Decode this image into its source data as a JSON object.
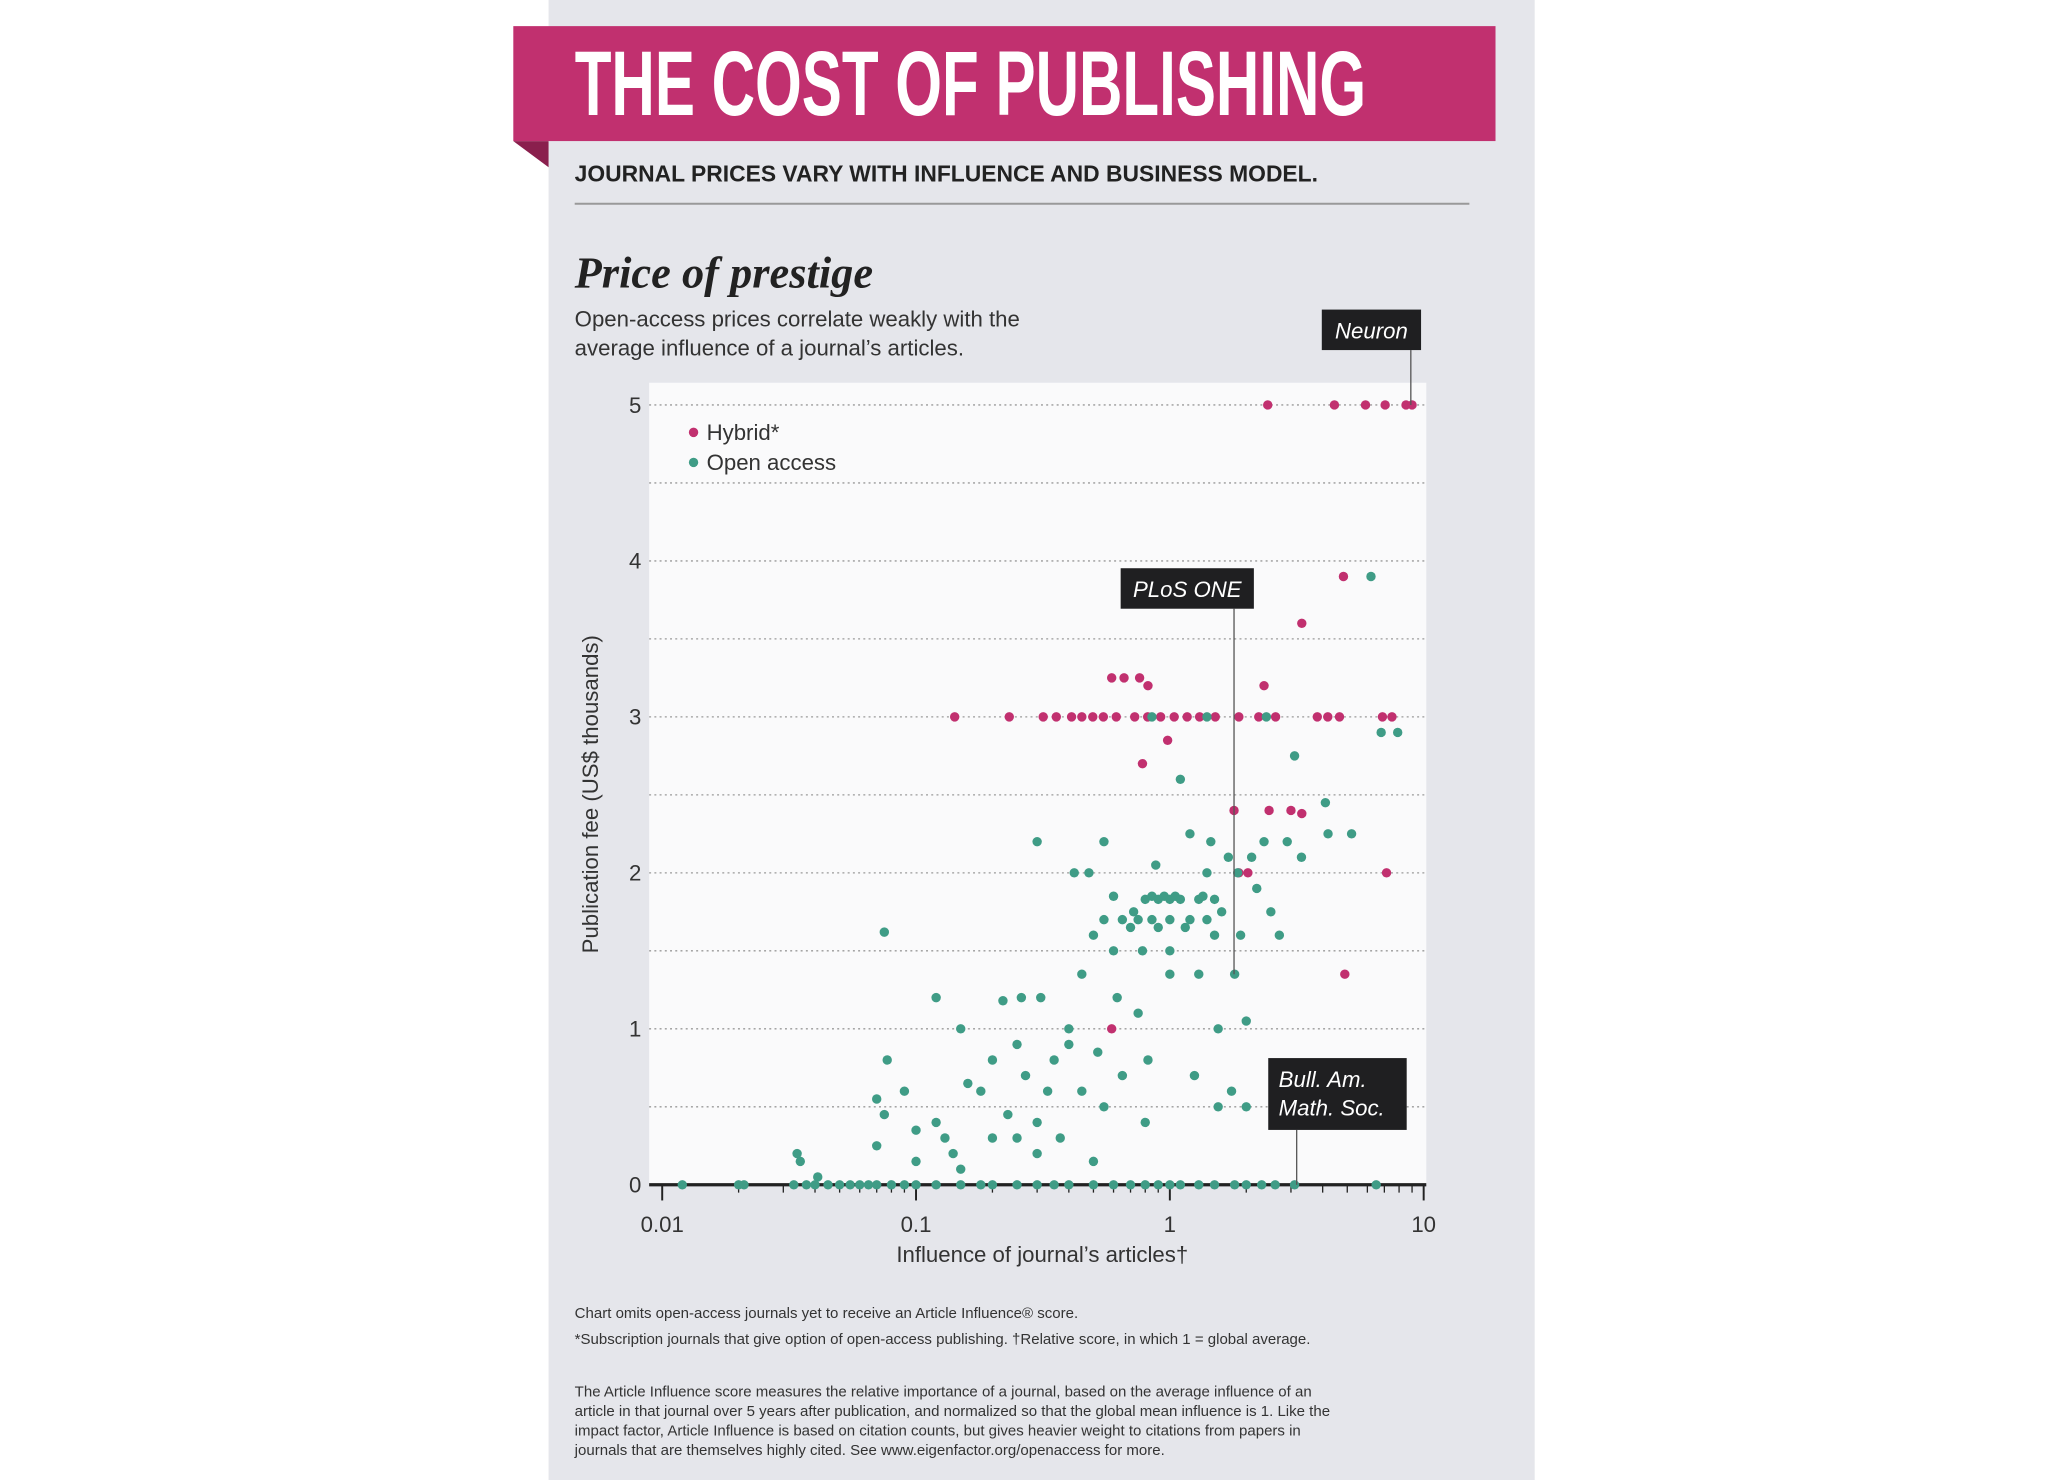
{
  "header": {
    "title": "THE COST OF PUBLISHING",
    "subtitle": "JOURNAL PRICES VARY WITH INFLUENCE AND BUSINESS MODEL."
  },
  "chart_data": {
    "type": "scatter",
    "title": "Price of prestige",
    "subtitle": [
      "Open-access prices correlate weakly with the",
      "average influence of a journal’s articles."
    ],
    "x_label": "Influence of journal’s articles†",
    "y_label": "Publication fee (US$ thousands)",
    "xscale": "log",
    "xlim": [
      0.01,
      10
    ],
    "xticks": [
      0.01,
      0.1,
      1,
      10
    ],
    "xminor": [
      0.02,
      0.03,
      0.04,
      0.05,
      0.06,
      0.07,
      0.08,
      0.09,
      0.2,
      0.3,
      0.4,
      0.5,
      0.6,
      0.7,
      0.8,
      0.9,
      2,
      3,
      4,
      5,
      6,
      7,
      8,
      9
    ],
    "ylim": [
      0,
      5
    ],
    "yticks": [
      0,
      1,
      2,
      3,
      4,
      5
    ],
    "yminor": [
      0.5,
      1.5,
      2.5,
      3.5,
      4.5
    ],
    "grid": true,
    "legend": "top-left",
    "series": [
      {
        "name": "Hybrid*",
        "color": "#c1306f",
        "x": [
          2.43,
          4.45,
          5.9,
          7.05,
          8.52,
          9.0,
          4.83,
          3.31,
          0.59,
          0.66,
          0.76,
          0.82,
          2.35,
          0.142,
          0.233,
          0.317,
          0.357,
          0.41,
          0.45,
          0.497,
          0.547,
          0.615,
          0.727,
          0.818,
          0.92,
          1.04,
          1.17,
          1.31,
          1.51,
          1.87,
          2.24,
          2.61,
          3.81,
          4.19,
          4.66,
          6.88,
          7.5,
          0.98,
          0.78,
          1.79,
          2.46,
          3.0,
          3.31,
          1.87,
          2.03,
          7.14,
          4.89,
          0.59
        ],
        "y": [
          5,
          5,
          5,
          5,
          5,
          5,
          3.9,
          3.6,
          3.25,
          3.25,
          3.25,
          3.2,
          3.2,
          3,
          3,
          3,
          3,
          3,
          3,
          3,
          3,
          3,
          3,
          3,
          3,
          3,
          3,
          3,
          3,
          3,
          3,
          3,
          3,
          3,
          3,
          3,
          3,
          2.85,
          2.7,
          2.4,
          2.4,
          2.4,
          2.38,
          2.0,
          2.0,
          2.0,
          1.35,
          1.0
        ]
      },
      {
        "name": "Open access",
        "color": "#3f9c86",
        "x": [
          0.012,
          0.02,
          0.021,
          0.033,
          0.037,
          0.04,
          0.045,
          0.05,
          0.055,
          0.06,
          0.065,
          0.07,
          0.08,
          0.09,
          0.1,
          0.12,
          0.15,
          0.18,
          0.2,
          0.25,
          0.3,
          0.35,
          0.4,
          0.5,
          0.6,
          0.7,
          0.8,
          0.9,
          1.0,
          1.1,
          1.3,
          1.5,
          1.8,
          2.0,
          2.3,
          2.6,
          3.1,
          6.5,
          0.034,
          0.035,
          0.041,
          0.07,
          0.075,
          0.077,
          0.07,
          0.09,
          0.1,
          0.1,
          0.12,
          0.12,
          0.13,
          0.14,
          0.15,
          0.15,
          0.16,
          0.18,
          0.2,
          0.2,
          0.22,
          0.23,
          0.25,
          0.26,
          0.27,
          0.3,
          0.3,
          0.3,
          0.31,
          0.33,
          0.35,
          0.37,
          0.4,
          0.4,
          0.42,
          0.45,
          0.45,
          0.5,
          0.5,
          0.52,
          0.55,
          0.55,
          0.6,
          0.6,
          0.62,
          0.65,
          0.7,
          0.72,
          0.75,
          0.78,
          0.8,
          0.82,
          0.85,
          0.88,
          0.9,
          0.95,
          1.0,
          1.0,
          1.05,
          1.1,
          1.15,
          1.2,
          1.25,
          1.3,
          1.35,
          1.4,
          1.45,
          1.5,
          1.55,
          1.6,
          1.7,
          1.75,
          1.8,
          1.85,
          1.9,
          2.0,
          2.1,
          2.2,
          2.35,
          2.5,
          2.7,
          2.9,
          3.1,
          3.3,
          4.1,
          4.2,
          5.2,
          6.2,
          6.8,
          7.9,
          0.48,
          0.25,
          0.85,
          1.4,
          2.4,
          0.075,
          1.55,
          2.0,
          0.55,
          0.65,
          0.75,
          0.85,
          1.0,
          1.2,
          1.4,
          0.8,
          0.9,
          1.0,
          1.1,
          1.3,
          1.5
        ],
        "y": [
          0,
          0,
          0,
          0,
          0,
          0,
          0,
          0,
          0,
          0,
          0,
          0,
          0,
          0,
          0,
          0,
          0,
          0,
          0,
          0,
          0,
          0,
          0,
          0,
          0,
          0,
          0,
          0,
          0,
          0,
          0,
          0,
          0,
          0,
          0,
          0,
          0,
          0,
          0.2,
          0.15,
          0.05,
          0.25,
          0.45,
          0.8,
          0.55,
          0.6,
          0.35,
          0.15,
          0.4,
          1.2,
          0.3,
          0.2,
          0.1,
          1.0,
          0.65,
          0.6,
          0.3,
          0.8,
          1.18,
          0.45,
          0.9,
          1.2,
          0.7,
          0.4,
          0.2,
          2.2,
          1.2,
          0.6,
          0.8,
          0.3,
          1.0,
          0.9,
          2.0,
          0.6,
          1.35,
          0.15,
          1.6,
          0.85,
          2.2,
          0.5,
          1.5,
          1.85,
          1.2,
          0.7,
          1.65,
          1.75,
          1.1,
          1.5,
          0.4,
          0.8,
          1.85,
          2.05,
          1.65,
          1.85,
          1.5,
          1.35,
          1.85,
          2.6,
          1.65,
          2.25,
          0.7,
          1.35,
          1.85,
          2.0,
          2.2,
          1.6,
          1.0,
          1.75,
          2.1,
          0.6,
          1.35,
          2.0,
          1.6,
          1.05,
          2.1,
          1.9,
          2.2,
          1.75,
          1.6,
          2.2,
          2.75,
          2.1,
          2.45,
          2.25,
          2.25,
          3.9,
          2.9,
          2.9,
          2.0,
          0.3,
          3.0,
          3.0,
          3.0,
          1.62,
          0.5,
          0.5,
          1.7,
          1.7,
          1.7,
          1.7,
          1.7,
          1.7,
          1.7,
          1.83,
          1.83,
          1.83,
          1.83,
          1.83,
          1.83
        ]
      }
    ],
    "annotations": [
      {
        "lines": [
          "Neuron"
        ],
        "x": 8.9,
        "y": 5
      },
      {
        "lines": [
          "PLoS ONE"
        ],
        "x": 1.79,
        "y": 1.35
      },
      {
        "lines": [
          "Bull. Am.",
          "Math. Soc."
        ],
        "x": 3.16,
        "y": 0
      }
    ]
  },
  "notes": [
    "Chart omits open-access journals yet to receive an Article Influence® score.",
    "*Subscription journals that give option of open-access publishing. †Relative score, in which 1 = global average."
  ],
  "about": [
    "The Article Influence score measures the relative importance of a journal, based on the average influence of an",
    "article in that journal over 5 years after publication, and normalized so that the global mean influence is 1. Like the",
    "impact factor, Article Influence is based on citation counts, but gives heavier weight to citations from papers in",
    "journals that are themselves highly cited. See www.eigenfactor.org/openaccess for more."
  ]
}
